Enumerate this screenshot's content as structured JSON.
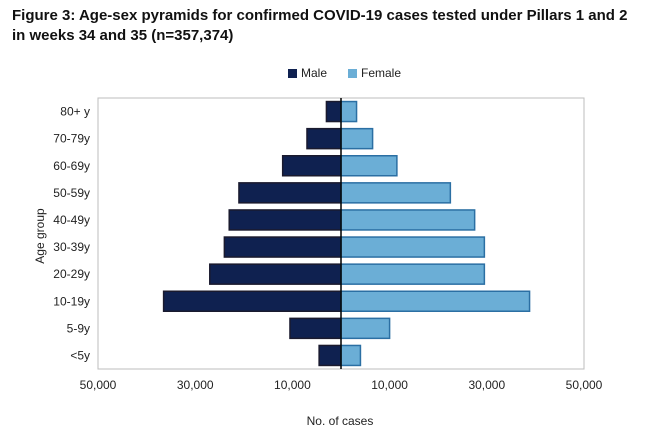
{
  "chart_data": {
    "type": "bar",
    "orientation": "horizontal-diverging",
    "title": "Figure 3: Age-sex pyramids for confirmed COVID-19 cases tested under Pillars 1 and 2 in weeks 34 and 35 (n=357,374)",
    "xlabel": "No. of cases",
    "ylabel": "Age group",
    "xlim": [
      -50000,
      50000
    ],
    "x_ticks": [
      -50000,
      -30000,
      -10000,
      10000,
      30000,
      50000
    ],
    "x_tick_labels": [
      "50,000",
      "30,000",
      "10,000",
      "10,000",
      "30,000",
      "50,000"
    ],
    "categories": [
      "80+ y",
      "70-79y",
      "60-69y",
      "50-59y",
      "40-49y",
      "30-39y",
      "20-29y",
      "10-19y",
      "5-9y",
      "<5y"
    ],
    "series": [
      {
        "name": "Male",
        "color": "#0f2150",
        "side": "left",
        "values": [
          3000,
          7000,
          12000,
          21000,
          23000,
          24000,
          27000,
          36500,
          10500,
          4500
        ]
      },
      {
        "name": "Female",
        "color": "#6baed6",
        "side": "right",
        "values": [
          3200,
          6500,
          11500,
          22500,
          27500,
          29500,
          29500,
          38800,
          10000,
          4000
        ]
      }
    ],
    "legend_position": "top-center",
    "grid": false
  }
}
